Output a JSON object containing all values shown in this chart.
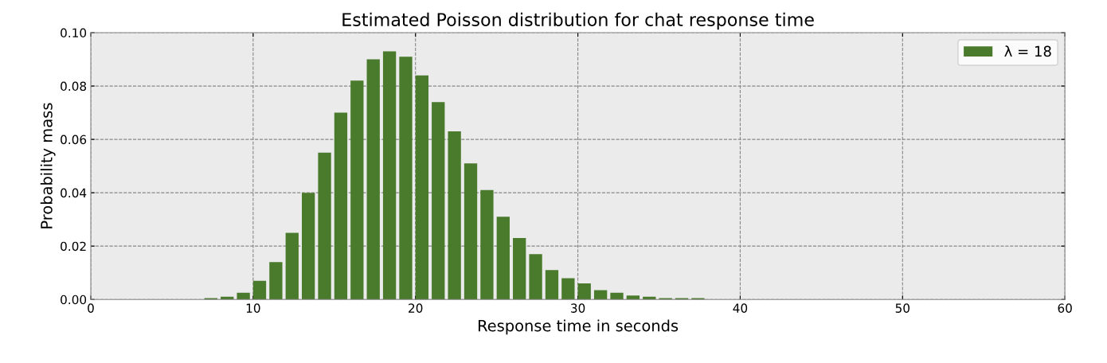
{
  "chart_data": {
    "type": "bar",
    "title": "Estimated Poisson distribution for chat response time",
    "xlabel": "Response time in seconds",
    "ylabel": "Probability mass",
    "x": [
      7.4,
      8.4,
      9.4,
      10.4,
      11.4,
      12.4,
      13.4,
      14.4,
      15.4,
      16.4,
      17.4,
      18.4,
      19.4,
      20.4,
      21.4,
      22.4,
      23.4,
      24.4,
      25.4,
      26.4,
      27.4,
      28.4,
      29.4,
      30.4,
      31.4,
      32.4,
      33.4,
      34.4,
      35.4,
      36.4,
      37.4
    ],
    "series": [
      {
        "name": "λ = 18",
        "color": "#4a7a2c",
        "values": [
          0.0005,
          0.001,
          0.0025,
          0.007,
          0.014,
          0.025,
          0.04,
          0.055,
          0.07,
          0.082,
          0.09,
          0.093,
          0.091,
          0.084,
          0.074,
          0.063,
          0.051,
          0.041,
          0.031,
          0.023,
          0.017,
          0.011,
          0.008,
          0.006,
          0.0035,
          0.0025,
          0.0015,
          0.001,
          0.0005,
          0.0005,
          0.0005
        ]
      }
    ],
    "xlim": [
      0,
      60
    ],
    "xticks": [
      0,
      10,
      20,
      30,
      40,
      50,
      60
    ],
    "ylim": [
      0,
      0.1
    ],
    "yticks": [
      {
        "value": 0,
        "label": "0.00"
      },
      {
        "value": 0.02,
        "label": "0.02"
      },
      {
        "value": 0.04,
        "label": "0.04"
      },
      {
        "value": 0.06,
        "label": "0.06"
      },
      {
        "value": 0.08,
        "label": "0.08"
      },
      {
        "value": 0.1,
        "label": "0.10"
      }
    ],
    "grid": true,
    "legend": "top right"
  }
}
